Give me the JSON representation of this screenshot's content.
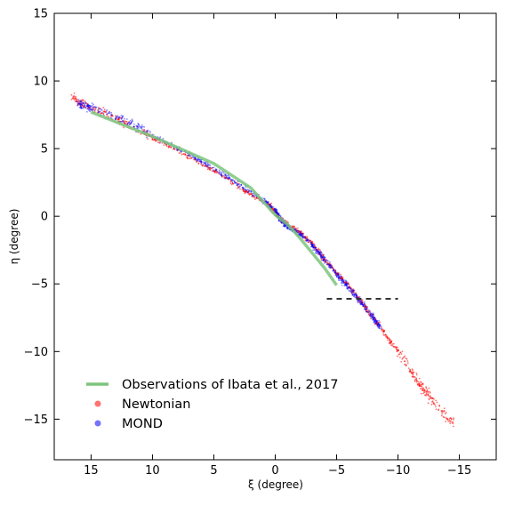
{
  "chart_data": {
    "type": "scatter",
    "title": "",
    "xlabel": "ξ (degree)",
    "ylabel": "η (degree)",
    "xlim": [
      18,
      -18
    ],
    "ylim": [
      -18,
      15
    ],
    "x_inverted": true,
    "x_ticks": [
      15,
      10,
      5,
      0,
      -5,
      -10,
      -15
    ],
    "x_tick_labels": [
      "15",
      "10",
      "5",
      "0",
      "−5",
      "−10",
      "−15"
    ],
    "y_ticks": [
      15,
      10,
      5,
      0,
      -5,
      -10,
      -15
    ],
    "y_tick_labels": [
      "15",
      "10",
      "5",
      "0",
      "−5",
      "−10",
      "−15"
    ],
    "grid": false,
    "legend_position": "lower-left",
    "series": [
      {
        "name": "Observations of Ibata et al., 2017",
        "kind": "line",
        "color": "#7cc47c",
        "points": [
          [
            15,
            7.7
          ],
          [
            10,
            5.9
          ],
          [
            5,
            3.9
          ],
          [
            2,
            2.1
          ],
          [
            0,
            0.1
          ],
          [
            -1,
            -0.6
          ],
          [
            -2,
            -1.6
          ],
          [
            -3,
            -2.7
          ],
          [
            -4,
            -3.8
          ],
          [
            -5,
            -5.1
          ]
        ]
      },
      {
        "name": "Newtonian",
        "kind": "scatter",
        "color": "#ff0000",
        "curve": [
          [
            16.5,
            8.8
          ],
          [
            15.5,
            8.2
          ],
          [
            14,
            7.6
          ],
          [
            12,
            6.8
          ],
          [
            10,
            5.8
          ],
          [
            8,
            4.9
          ],
          [
            6,
            3.9
          ],
          [
            4,
            2.8
          ],
          [
            2,
            1.6
          ],
          [
            0.5,
            0.9
          ],
          [
            0,
            0.3
          ],
          [
            -0.5,
            -0.3
          ],
          [
            -1,
            -0.6
          ],
          [
            -2,
            -1.2
          ],
          [
            -3,
            -2.0
          ],
          [
            -4,
            -3.2
          ],
          [
            -5,
            -4.2
          ],
          [
            -6,
            -5.2
          ],
          [
            -7,
            -6.3
          ],
          [
            -8,
            -7.5
          ],
          [
            -9,
            -8.8
          ],
          [
            -10,
            -10.0
          ],
          [
            -11,
            -11.4
          ],
          [
            -12,
            -12.7
          ],
          [
            -13,
            -13.8
          ],
          [
            -14.5,
            -15.4
          ]
        ]
      },
      {
        "name": "MOND",
        "kind": "scatter",
        "color": "#0000ff",
        "curve": [
          [
            16.0,
            8.4
          ],
          [
            15,
            8.0
          ],
          [
            13,
            7.3
          ],
          [
            11,
            6.5
          ],
          [
            9,
            5.5
          ],
          [
            7,
            4.6
          ],
          [
            5,
            3.5
          ],
          [
            3,
            2.4
          ],
          [
            1,
            1.2
          ],
          [
            0,
            0.4
          ],
          [
            -0.5,
            -0.3
          ],
          [
            -1,
            -0.8
          ],
          [
            -2,
            -1.3
          ],
          [
            -3,
            -2.1
          ],
          [
            -4,
            -3.2
          ],
          [
            -5,
            -4.3
          ],
          [
            -6,
            -5.3
          ],
          [
            -7,
            -6.4
          ],
          [
            -8,
            -7.5
          ],
          [
            -8.5,
            -8.2
          ]
        ]
      }
    ],
    "annotations": [
      {
        "type": "dashed-hline",
        "y": -6.1,
        "x_from": -4.2,
        "x_to": -10,
        "color": "#333333"
      }
    ]
  }
}
